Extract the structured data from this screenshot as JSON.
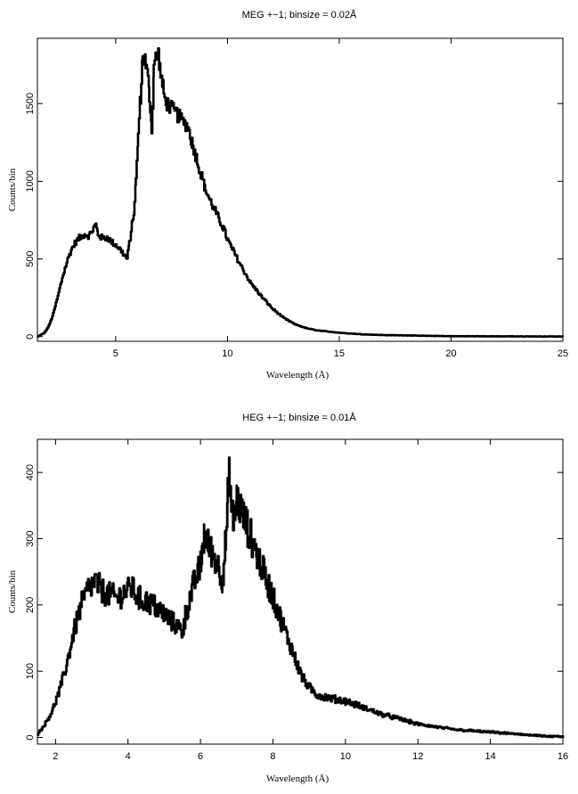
{
  "chart_data": [
    {
      "type": "line",
      "title": "MEG +−1; binsize = 0.02Å",
      "xlabel": "Wavelength (Å)",
      "ylabel": "Counts/bin",
      "xlim": [
        1.5,
        25
      ],
      "ylim": [
        -30,
        1920
      ],
      "xticks": [
        5,
        10,
        15,
        20,
        25
      ],
      "yticks": [
        0,
        500,
        1000,
        1500
      ],
      "grid": false,
      "series": [
        {
          "x": [
            1.5,
            1.8,
            2.0,
            2.2,
            2.4,
            2.6,
            2.8,
            3.0,
            3.2,
            3.4,
            3.6,
            3.8,
            4.0,
            4.1,
            4.2,
            4.4,
            4.6,
            4.8,
            5.0,
            5.2,
            5.4,
            5.5,
            5.6,
            5.8,
            5.9,
            6.0,
            6.1,
            6.2,
            6.3,
            6.4,
            6.5,
            6.6,
            6.65,
            6.7,
            6.8,
            6.9,
            7.0,
            7.1,
            7.2,
            7.4,
            7.6,
            7.8,
            8.0,
            8.2,
            8.4,
            8.6,
            8.8,
            9.0,
            9.2,
            9.4,
            9.6,
            9.8,
            10.0,
            10.5,
            11.0,
            11.5,
            12.0,
            12.5,
            13.0,
            13.5,
            14.0,
            15.0,
            16.0,
            17.0,
            18.0,
            19.0,
            20.0,
            22.0,
            25.0
          ],
          "y": [
            0,
            25,
            70,
            150,
            260,
            380,
            480,
            560,
            610,
            640,
            660,
            650,
            700,
            720,
            660,
            630,
            640,
            610,
            590,
            560,
            520,
            500,
            600,
            800,
            1000,
            1300,
            1550,
            1800,
            1780,
            1700,
            1550,
            1350,
            1500,
            1750,
            1800,
            1820,
            1700,
            1600,
            1520,
            1480,
            1450,
            1420,
            1380,
            1360,
            1250,
            1150,
            1050,
            950,
            880,
            820,
            760,
            700,
            620,
            480,
            350,
            260,
            180,
            120,
            80,
            55,
            40,
            25,
            15,
            10,
            8,
            5,
            3,
            2,
            1
          ]
        }
      ]
    },
    {
      "type": "line",
      "title": "HEG +−1; binsize = 0.01Å",
      "xlabel": "Wavelength (Å)",
      "ylabel": "Counts/bin",
      "xlim": [
        1.5,
        16
      ],
      "ylim": [
        -10,
        450
      ],
      "xticks": [
        2,
        4,
        6,
        8,
        10,
        12,
        14,
        16
      ],
      "yticks": [
        0,
        100,
        200,
        300,
        400
      ],
      "grid": false,
      "series": [
        {
          "x": [
            1.5,
            1.7,
            1.9,
            2.1,
            2.3,
            2.5,
            2.7,
            2.9,
            3.1,
            3.3,
            3.5,
            3.7,
            3.9,
            4.1,
            4.3,
            4.5,
            4.7,
            4.9,
            5.1,
            5.3,
            5.5,
            5.6,
            5.8,
            6.0,
            6.1,
            6.2,
            6.4,
            6.6,
            6.7,
            6.75,
            6.8,
            6.85,
            6.9,
            7.0,
            7.2,
            7.4,
            7.6,
            7.8,
            8.0,
            8.2,
            8.4,
            8.6,
            8.8,
            9.0,
            9.2,
            9.5,
            10.0,
            10.5,
            11.0,
            11.5,
            12.0,
            12.5,
            13.0,
            13.5,
            14.0,
            14.5,
            15.0,
            15.5,
            16.0
          ],
          "y": [
            5,
            20,
            40,
            70,
            110,
            160,
            200,
            225,
            235,
            220,
            215,
            210,
            220,
            225,
            210,
            205,
            200,
            190,
            180,
            170,
            160,
            190,
            230,
            260,
            310,
            290,
            270,
            240,
            300,
            360,
            400,
            340,
            330,
            360,
            330,
            300,
            270,
            240,
            210,
            180,
            150,
            120,
            90,
            75,
            65,
            60,
            55,
            45,
            35,
            28,
            20,
            16,
            12,
            10,
            8,
            6,
            4,
            2,
            1
          ]
        }
      ]
    }
  ]
}
